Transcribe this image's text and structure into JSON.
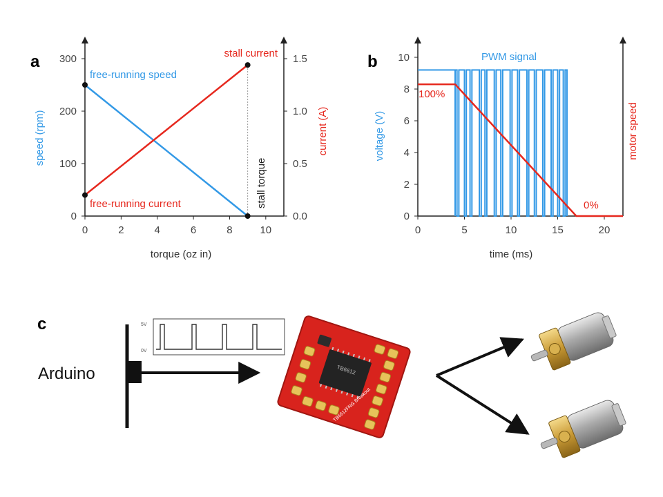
{
  "panels": {
    "a": "a",
    "b": "b",
    "c": "c"
  },
  "chart_data": [
    {
      "type": "line",
      "panel": "a",
      "xlabel": "torque (oz in)",
      "ylabel": "speed (rpm)",
      "y2label": "current (A)",
      "xlim": [
        0,
        11
      ],
      "ylim": [
        0,
        300
      ],
      "y2lim": [
        0,
        1.5
      ],
      "xticks": [
        "0",
        "2",
        "4",
        "6",
        "8",
        "10"
      ],
      "xtick_values": [
        0,
        2,
        4,
        6,
        8,
        10
      ],
      "yticks": [
        "0",
        "100",
        "200",
        "300"
      ],
      "ytick_values": [
        0,
        100,
        200,
        300
      ],
      "y2ticks": [
        "0.0",
        "0.5",
        "1.0",
        "1.5"
      ],
      "y2tick_values": [
        0,
        0.5,
        1.0,
        1.5
      ],
      "series": [
        {
          "name": "speed",
          "axis": "left",
          "color": "#3399e6",
          "x": [
            0,
            9
          ],
          "y": [
            250,
            0
          ]
        },
        {
          "name": "current",
          "axis": "right",
          "color": "#e6281e",
          "x": [
            0,
            9
          ],
          "y": [
            0.2,
            1.44
          ]
        }
      ],
      "annotations": {
        "free_running_speed": "free-running speed",
        "free_running_current": "free-running current",
        "stall_current": "stall current",
        "stall_torque": "stall torque"
      },
      "speed_color": "#3399e6",
      "current_color": "#e6281e"
    },
    {
      "type": "line",
      "panel": "b",
      "xlabel": "time (ms)",
      "ylabel": "voltage (V)",
      "y2label": "motor speed",
      "xlim": [
        0,
        22
      ],
      "ylim": [
        0,
        10
      ],
      "xticks": [
        "0",
        "5",
        "10",
        "15",
        "20"
      ],
      "xtick_values": [
        0,
        5,
        10,
        15,
        20
      ],
      "yticks": [
        "0",
        "2",
        "4",
        "6",
        "8",
        "10"
      ],
      "ytick_values": [
        0,
        2,
        4,
        6,
        8,
        10
      ],
      "pwm_high_voltage": 9.2,
      "pwm_low_voltage": 0,
      "pwm_start_ms": 4,
      "pwm_end_ms": 16,
      "pwm_pulses": [
        {
          "start": 4.0,
          "end": 4.2
        },
        {
          "start": 4.4,
          "end": 5.0
        },
        {
          "start": 5.2,
          "end": 5.6
        },
        {
          "start": 5.8,
          "end": 6.6
        },
        {
          "start": 6.8,
          "end": 7.2
        },
        {
          "start": 7.4,
          "end": 8.2
        },
        {
          "start": 8.4,
          "end": 8.9
        },
        {
          "start": 9.1,
          "end": 9.9
        },
        {
          "start": 10.1,
          "end": 10.7
        },
        {
          "start": 10.9,
          "end": 11.7
        },
        {
          "start": 11.9,
          "end": 12.5
        },
        {
          "start": 12.7,
          "end": 13.4
        },
        {
          "start": 13.6,
          "end": 14.3
        },
        {
          "start": 14.5,
          "end": 15.0
        },
        {
          "start": 15.2,
          "end": 15.6
        },
        {
          "start": 15.8,
          "end": 16.0
        }
      ],
      "series": [
        {
          "name": "motor speed",
          "color": "#e6281e",
          "x": [
            0,
            4,
            17,
            22
          ],
          "y": [
            8.3,
            8.3,
            0,
            0
          ]
        }
      ],
      "annotations": {
        "pwm_signal": "PWM signal",
        "start_pct": "100%",
        "end_pct": "0%"
      },
      "voltage_color": "#3399e6",
      "speed_color": "#e6281e"
    }
  ],
  "diagram_c": {
    "arduino_label": "Arduino",
    "scope_high_label": "5V",
    "scope_low_label": "0V",
    "board_label": "TB6612FNG Breakout",
    "chip_label": "TB6612"
  }
}
